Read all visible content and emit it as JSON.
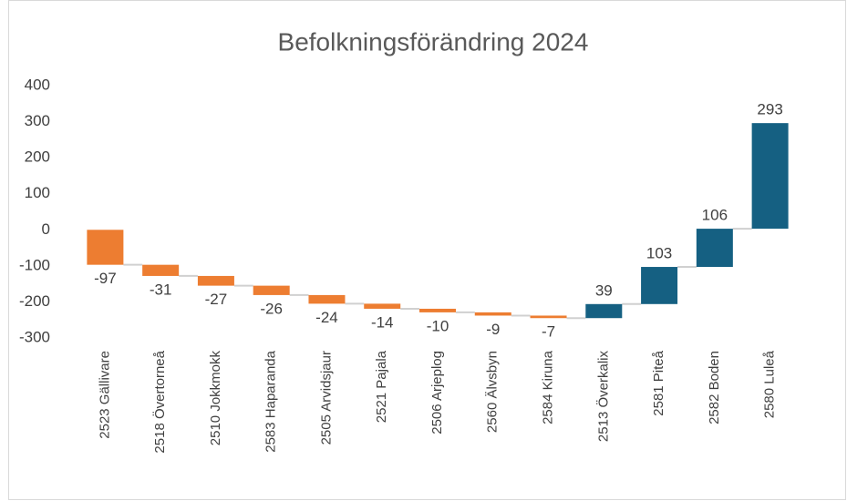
{
  "chart_data": {
    "type": "waterfall",
    "title": "Befolkningsförändring 2024",
    "categories": [
      "2523 Gällivare",
      "2518 Övertorneå",
      "2510 Jokkmokk",
      "2583 Haparanda",
      "2505 Arvidsjaur",
      "2521 Pajala",
      "2506 Arjeplog",
      "2560 Älvsbyn",
      "2584 Kiruna",
      "2513 Överkalix",
      "2581 Piteå",
      "2582 Boden",
      "2580 Luleå"
    ],
    "values": [
      -97,
      -31,
      -27,
      -26,
      -24,
      -14,
      -10,
      -9,
      -7,
      39,
      103,
      106,
      293
    ],
    "increase_color": "#156082",
    "decrease_color": "#ed7d31",
    "ylim": [
      -300,
      400
    ],
    "yticks": [
      -300,
      -200,
      -100,
      0,
      100,
      200,
      300,
      400
    ],
    "grid": false
  }
}
